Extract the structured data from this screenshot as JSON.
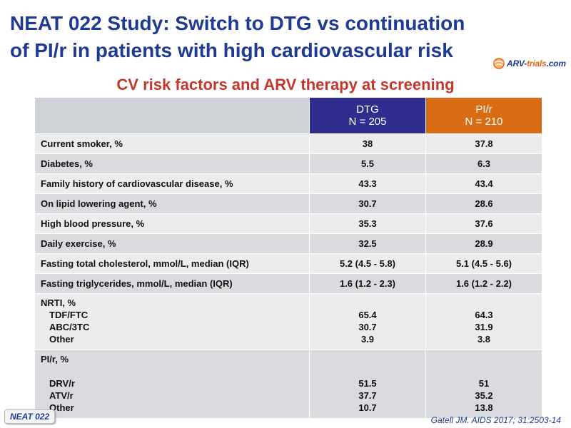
{
  "title_line1": "NEAT 022 Study: Switch to DTG vs continuation",
  "title_line2": "of PI/r in patients with high cardiovascular risk",
  "logo": {
    "part1": "ARV-",
    "part2": "trials",
    "part3": ".com"
  },
  "subtitle": "CV risk factors and ARV therapy at screening",
  "header": {
    "dtg_line1": "DTG",
    "dtg_line2": "N = 205",
    "pir_line1": "PI/r",
    "pir_line2": "N = 210"
  },
  "rows": [
    {
      "label": "Current smoker, %",
      "dtg": "38",
      "pir": "37.8"
    },
    {
      "label": "Diabetes, %",
      "dtg": "5.5",
      "pir": "6.3"
    },
    {
      "label": "Family history of cardiovascular disease, %",
      "dtg": "43.3",
      "pir": "43.4"
    },
    {
      "label": "On lipid lowering agent, %",
      "dtg": "30.7",
      "pir": "28.6"
    },
    {
      "label": "High blood pressure, %",
      "dtg": "35.3",
      "pir": "37.6"
    },
    {
      "label": "Daily exercise, %",
      "dtg": "32.5",
      "pir": "28.9"
    },
    {
      "label": "Fasting total cholesterol, mmol/L, median (IQR)",
      "dtg": "5.2 (4.5 - 5.8)",
      "pir": "5.1 (4.5 - 5.6)"
    },
    {
      "label": "Fasting triglycerides, mmol/L, median (IQR)",
      "dtg": "1.6 (1.2 - 2.3)",
      "pir": "1.6 (1.2 - 2.2)"
    }
  ],
  "nrti": {
    "label": "NRTI, %",
    "items": [
      {
        "label": "TDF/FTC",
        "dtg": "65.4",
        "pir": "64.3"
      },
      {
        "label": "ABC/3TC",
        "dtg": "30.7",
        "pir": "31.9"
      },
      {
        "label": "Other",
        "dtg": "3.9",
        "pir": "3.8"
      }
    ]
  },
  "pir_group": {
    "label": "PI/r, %",
    "items": [
      {
        "label": "DRV/r",
        "dtg": "51.5",
        "pir": "51"
      },
      {
        "label": "ATV/r",
        "dtg": "37.7",
        "pir": "35.2"
      },
      {
        "label": "Other",
        "dtg": "10.7",
        "pir": "13.8"
      }
    ]
  },
  "badge": "NEAT 022",
  "reference": "Gatell JM. AIDS 2017; 31:2503-14"
}
